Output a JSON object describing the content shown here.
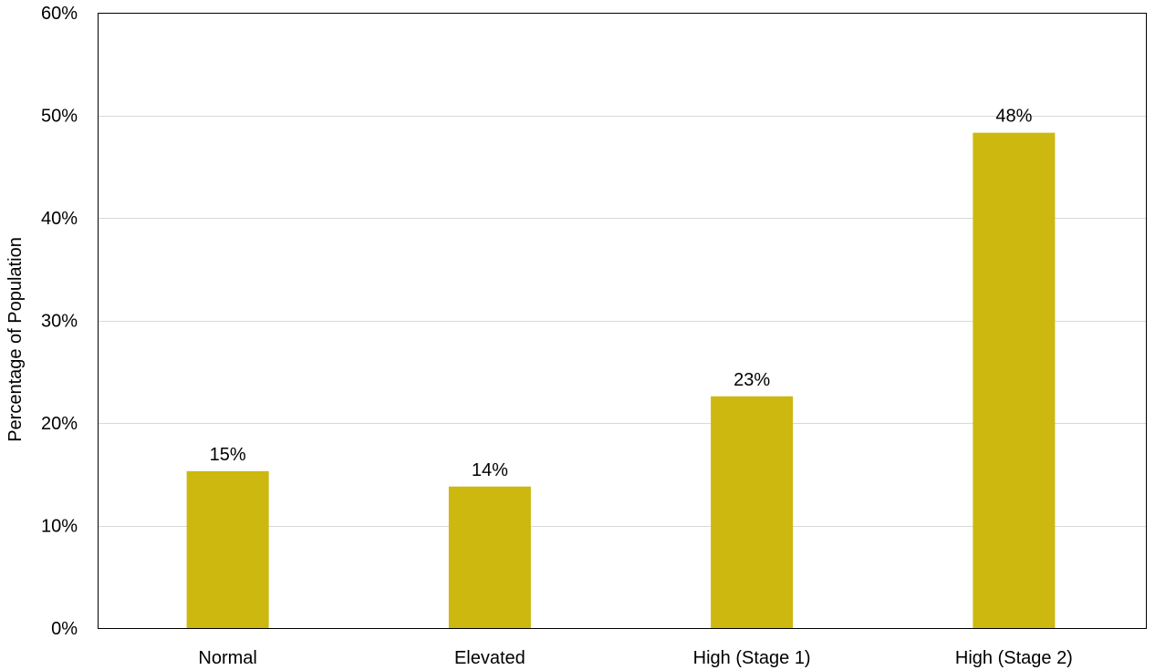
{
  "chart_data": {
    "type": "bar",
    "title": "",
    "xlabel": "",
    "ylabel": "Percentage of Population",
    "categories": [
      "Normal",
      "Elevated",
      "High (Stage 1)",
      "High (Stage 2)"
    ],
    "series": [
      {
        "values": [
          15.3,
          13.8,
          22.6,
          48.3
        ],
        "data_labels": [
          "15%",
          "14%",
          "23%",
          "48%"
        ],
        "color": "#CCB80E"
      }
    ],
    "ylim": [
      0,
      60
    ],
    "yticks": [
      0,
      10,
      20,
      30,
      40,
      50,
      60
    ],
    "ytick_labels": [
      "0%",
      "10%",
      "20%",
      "30%",
      "40%",
      "50%",
      "60%"
    ],
    "grid": true,
    "grid_color": "#D9D9D9",
    "legend": "none"
  }
}
